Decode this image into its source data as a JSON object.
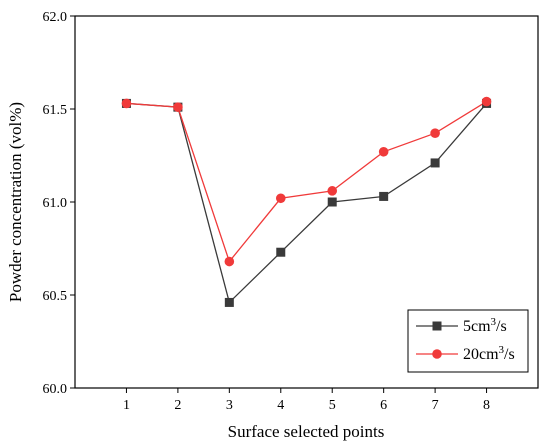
{
  "chart_data": {
    "type": "line",
    "xlabel": "Surface selected points",
    "ylabel": "Powder concentration (vol%)",
    "x": [
      1,
      2,
      3,
      4,
      5,
      6,
      7,
      8
    ],
    "xlim": [
      0,
      9
    ],
    "ylim": [
      60.0,
      62.0
    ],
    "yticks": [
      "60.0",
      "60.5",
      "61.0",
      "61.5",
      "62.0"
    ],
    "grid": false,
    "legend_position": "bottom-right",
    "series": [
      {
        "name": "5cm³/s",
        "name_base": "5cm",
        "name_sup": "3",
        "name_tail": "/s",
        "marker": "square",
        "color": "#3a3a3a",
        "values": [
          61.53,
          61.51,
          60.46,
          60.73,
          61.0,
          61.03,
          61.21,
          61.53
        ]
      },
      {
        "name": "20cm³/s",
        "name_base": "20cm",
        "name_sup": "3",
        "name_tail": "/s",
        "marker": "circle",
        "color": "#f03a3a",
        "values": [
          61.53,
          61.51,
          60.68,
          61.02,
          61.06,
          61.27,
          61.37,
          61.54
        ]
      }
    ]
  }
}
